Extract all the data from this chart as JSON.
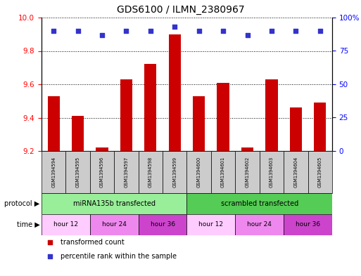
{
  "title": "GDS6100 / ILMN_2380967",
  "samples": [
    "GSM1394594",
    "GSM1394595",
    "GSM1394596",
    "GSM1394597",
    "GSM1394598",
    "GSM1394599",
    "GSM1394600",
    "GSM1394601",
    "GSM1394602",
    "GSM1394603",
    "GSM1394604",
    "GSM1394605"
  ],
  "transformed_counts": [
    9.53,
    9.41,
    9.22,
    9.63,
    9.72,
    9.9,
    9.53,
    9.61,
    9.22,
    9.63,
    9.46,
    9.49
  ],
  "percentile_ranks": [
    90,
    90,
    87,
    90,
    90,
    93,
    90,
    90,
    87,
    90,
    90,
    90
  ],
  "ylim_left": [
    9.2,
    10.0
  ],
  "ylim_right": [
    0,
    100
  ],
  "yticks_left": [
    9.2,
    9.4,
    9.6,
    9.8,
    10.0
  ],
  "yticks_right": [
    0,
    25,
    50,
    75,
    100
  ],
  "bar_color": "#cc0000",
  "dot_color": "#3333cc",
  "grid_color": "#000000",
  "sample_bg_color": "#cccccc",
  "proto_color1": "#99ee99",
  "proto_color2": "#55cc55",
  "time_color_h12": "#ffccff",
  "time_color_h24": "#ee88ee",
  "time_color_h36": "#cc44cc",
  "proto_labels": [
    "miRNA135b transfected",
    "scrambled transfected"
  ],
  "time_labels": [
    "hour 12",
    "hour 24",
    "hour 36"
  ],
  "legend_label1": "transformed count",
  "legend_label2": "percentile rank within the sample"
}
